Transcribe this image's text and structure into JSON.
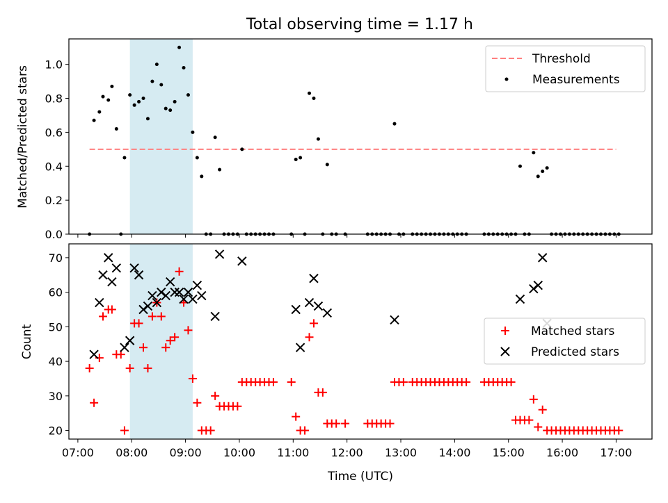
{
  "title": "Total observing time = 1.17 h",
  "colors": {
    "threshold": "#ff7f7f",
    "matched": "#ff0000",
    "predicted": "#000000",
    "band": "#add8e6"
  },
  "chart_data": [
    {
      "type": "scatter",
      "ylabel": "Matched/Predicted stars",
      "xlim": [
        "06:50",
        "17:40"
      ],
      "ylim": [
        0,
        1.15
      ],
      "yticks": [
        "0.0",
        "0.2",
        "0.4",
        "0.6",
        "0.8",
        "1.0"
      ],
      "legend_position": "top-right",
      "shaded_interval": [
        "07:58",
        "09:08"
      ],
      "threshold": {
        "name": "Threshold",
        "y": 0.5,
        "x_range": [
          "07:13",
          "17:00"
        ]
      },
      "series": [
        {
          "name": "Measurements",
          "points": [
            [
              "07:13",
              0
            ],
            [
              "07:18",
              0.67
            ],
            [
              "07:24",
              0.72
            ],
            [
              "07:28",
              0.81
            ],
            [
              "07:34",
              0.79
            ],
            [
              "07:38",
              0.87
            ],
            [
              "07:43",
              0.62
            ],
            [
              "07:48",
              0
            ],
            [
              "07:52",
              0.45
            ],
            [
              "07:58",
              0.82
            ],
            [
              "08:03",
              0.76
            ],
            [
              "08:08",
              0.78
            ],
            [
              "08:13",
              0.8
            ],
            [
              "08:18",
              0.68
            ],
            [
              "08:23",
              0.9
            ],
            [
              "08:28",
              1.0
            ],
            [
              "08:33",
              0.88
            ],
            [
              "08:38",
              0.74
            ],
            [
              "08:43",
              0.73
            ],
            [
              "08:48",
              0.78
            ],
            [
              "08:53",
              1.1
            ],
            [
              "08:58",
              0.98
            ],
            [
              "09:03",
              0.82
            ],
            [
              "09:08",
              0.6
            ],
            [
              "09:13",
              0.45
            ],
            [
              "09:18",
              0.34
            ],
            [
              "09:23",
              0
            ],
            [
              "09:28",
              0
            ],
            [
              "09:33",
              0.57
            ],
            [
              "09:38",
              0.38
            ],
            [
              "09:43",
              0
            ],
            [
              "09:48",
              0
            ],
            [
              "09:53",
              0
            ],
            [
              "09:58",
              0
            ],
            [
              "10:03",
              0.5
            ],
            [
              "10:08",
              0
            ],
            [
              "10:13",
              0
            ],
            [
              "10:18",
              0
            ],
            [
              "10:23",
              0
            ],
            [
              "10:28",
              0
            ],
            [
              "10:33",
              0
            ],
            [
              "10:38",
              0
            ],
            [
              "10:58",
              0
            ],
            [
              "11:03",
              0.44
            ],
            [
              "11:08",
              0.45
            ],
            [
              "11:13",
              0
            ],
            [
              "11:18",
              0.83
            ],
            [
              "11:23",
              0.8
            ],
            [
              "11:28",
              0.56
            ],
            [
              "11:33",
              0
            ],
            [
              "11:38",
              0.41
            ],
            [
              "11:43",
              0
            ],
            [
              "11:48",
              0
            ],
            [
              "11:58",
              0
            ],
            [
              "12:23",
              0
            ],
            [
              "12:28",
              0
            ],
            [
              "12:33",
              0
            ],
            [
              "12:38",
              0
            ],
            [
              "12:43",
              0
            ],
            [
              "12:48",
              0
            ],
            [
              "12:53",
              0.65
            ],
            [
              "12:58",
              0
            ],
            [
              "13:03",
              0
            ],
            [
              "13:13",
              0
            ],
            [
              "13:18",
              0
            ],
            [
              "13:23",
              0
            ],
            [
              "13:28",
              0
            ],
            [
              "13:33",
              0
            ],
            [
              "13:38",
              0
            ],
            [
              "13:43",
              0
            ],
            [
              "13:48",
              0
            ],
            [
              "13:53",
              0
            ],
            [
              "13:58",
              0
            ],
            [
              "14:03",
              0
            ],
            [
              "14:08",
              0
            ],
            [
              "14:13",
              0
            ],
            [
              "14:33",
              0
            ],
            [
              "14:38",
              0
            ],
            [
              "14:43",
              0
            ],
            [
              "14:48",
              0
            ],
            [
              "14:53",
              0
            ],
            [
              "14:58",
              0
            ],
            [
              "15:03",
              0
            ],
            [
              "15:08",
              0
            ],
            [
              "15:13",
              0.4
            ],
            [
              "15:18",
              0
            ],
            [
              "15:23",
              0
            ],
            [
              "15:28",
              0.48
            ],
            [
              "15:33",
              0.34
            ],
            [
              "15:38",
              0.37
            ],
            [
              "15:43",
              0.39
            ],
            [
              "15:48",
              0
            ],
            [
              "15:53",
              0
            ],
            [
              "15:58",
              0
            ],
            [
              "16:03",
              0
            ],
            [
              "16:08",
              0
            ],
            [
              "16:13",
              0
            ],
            [
              "16:18",
              0
            ],
            [
              "16:23",
              0
            ],
            [
              "16:28",
              0
            ],
            [
              "16:33",
              0
            ],
            [
              "16:38",
              0
            ],
            [
              "16:43",
              0
            ],
            [
              "16:48",
              0
            ],
            [
              "16:53",
              0
            ],
            [
              "16:58",
              0
            ],
            [
              "17:03",
              0
            ]
          ]
        }
      ]
    },
    {
      "type": "scatter",
      "xlabel": "Time (UTC)",
      "ylabel": "Count",
      "xlim": [
        "06:50",
        "17:40"
      ],
      "ylim": [
        17.5,
        74
      ],
      "xticks": [
        "07:00",
        "08:00",
        "09:00",
        "10:00",
        "11:00",
        "12:00",
        "13:00",
        "14:00",
        "15:00",
        "16:00",
        "17:00"
      ],
      "yticks": [
        "20",
        "30",
        "40",
        "50",
        "60",
        "70"
      ],
      "legend_position": "center-right",
      "shaded_interval": [
        "07:58",
        "09:08"
      ],
      "series": [
        {
          "name": "Matched stars",
          "points": [
            [
              "07:13",
              38
            ],
            [
              "07:18",
              28
            ],
            [
              "07:24",
              41
            ],
            [
              "07:28",
              53
            ],
            [
              "07:34",
              55
            ],
            [
              "07:38",
              55
            ],
            [
              "07:43",
              42
            ],
            [
              "07:48",
              42
            ],
            [
              "07:52",
              20
            ],
            [
              "07:58",
              38
            ],
            [
              "08:03",
              51
            ],
            [
              "08:08",
              51
            ],
            [
              "08:13",
              44
            ],
            [
              "08:18",
              38
            ],
            [
              "08:23",
              53
            ],
            [
              "08:28",
              57
            ],
            [
              "08:33",
              53
            ],
            [
              "08:38",
              44
            ],
            [
              "08:43",
              46
            ],
            [
              "08:48",
              47
            ],
            [
              "08:53",
              66
            ],
            [
              "08:58",
              57
            ],
            [
              "09:03",
              49
            ],
            [
              "09:08",
              35
            ],
            [
              "09:13",
              28
            ],
            [
              "09:18",
              20
            ],
            [
              "09:23",
              20
            ],
            [
              "09:28",
              20
            ],
            [
              "09:33",
              30
            ],
            [
              "09:38",
              27
            ],
            [
              "09:43",
              27
            ],
            [
              "09:48",
              27
            ],
            [
              "09:53",
              27
            ],
            [
              "09:58",
              27
            ],
            [
              "10:03",
              34
            ],
            [
              "10:08",
              34
            ],
            [
              "10:13",
              34
            ],
            [
              "10:18",
              34
            ],
            [
              "10:23",
              34
            ],
            [
              "10:28",
              34
            ],
            [
              "10:33",
              34
            ],
            [
              "10:38",
              34
            ],
            [
              "10:58",
              34
            ],
            [
              "11:03",
              24
            ],
            [
              "11:08",
              20
            ],
            [
              "11:13",
              20
            ],
            [
              "11:18",
              47
            ],
            [
              "11:23",
              51
            ],
            [
              "11:28",
              31
            ],
            [
              "11:33",
              31
            ],
            [
              "11:38",
              22
            ],
            [
              "11:43",
              22
            ],
            [
              "11:48",
              22
            ],
            [
              "11:58",
              22
            ],
            [
              "12:23",
              22
            ],
            [
              "12:28",
              22
            ],
            [
              "12:33",
              22
            ],
            [
              "12:38",
              22
            ],
            [
              "12:43",
              22
            ],
            [
              "12:48",
              22
            ],
            [
              "12:53",
              34
            ],
            [
              "12:58",
              34
            ],
            [
              "13:03",
              34
            ],
            [
              "13:13",
              34
            ],
            [
              "13:18",
              34
            ],
            [
              "13:23",
              34
            ],
            [
              "13:28",
              34
            ],
            [
              "13:33",
              34
            ],
            [
              "13:38",
              34
            ],
            [
              "13:43",
              34
            ],
            [
              "13:48",
              34
            ],
            [
              "13:53",
              34
            ],
            [
              "13:58",
              34
            ],
            [
              "14:03",
              34
            ],
            [
              "14:08",
              34
            ],
            [
              "14:13",
              34
            ],
            [
              "14:33",
              34
            ],
            [
              "14:38",
              34
            ],
            [
              "14:43",
              34
            ],
            [
              "14:48",
              34
            ],
            [
              "14:53",
              34
            ],
            [
              "14:58",
              34
            ],
            [
              "15:03",
              34
            ],
            [
              "15:08",
              23
            ],
            [
              "15:13",
              23
            ],
            [
              "15:18",
              23
            ],
            [
              "15:23",
              23
            ],
            [
              "15:28",
              29
            ],
            [
              "15:33",
              21
            ],
            [
              "15:38",
              26
            ],
            [
              "15:43",
              20
            ],
            [
              "15:48",
              20
            ],
            [
              "15:53",
              20
            ],
            [
              "15:58",
              20
            ],
            [
              "16:03",
              20
            ],
            [
              "16:08",
              20
            ],
            [
              "16:13",
              20
            ],
            [
              "16:18",
              20
            ],
            [
              "16:23",
              20
            ],
            [
              "16:28",
              20
            ],
            [
              "16:33",
              20
            ],
            [
              "16:38",
              20
            ],
            [
              "16:43",
              20
            ],
            [
              "16:48",
              20
            ],
            [
              "16:53",
              20
            ],
            [
              "16:58",
              20
            ],
            [
              "17:03",
              20
            ]
          ]
        },
        {
          "name": "Predicted stars",
          "points": [
            [
              "07:18",
              42
            ],
            [
              "07:24",
              57
            ],
            [
              "07:28",
              65
            ],
            [
              "07:34",
              70
            ],
            [
              "07:38",
              63
            ],
            [
              "07:43",
              67
            ],
            [
              "07:52",
              44
            ],
            [
              "07:58",
              46
            ],
            [
              "08:03",
              67
            ],
            [
              "08:08",
              65
            ],
            [
              "08:13",
              55
            ],
            [
              "08:18",
              56
            ],
            [
              "08:23",
              59
            ],
            [
              "08:28",
              57
            ],
            [
              "08:33",
              60
            ],
            [
              "08:38",
              59
            ],
            [
              "08:43",
              63
            ],
            [
              "08:48",
              60
            ],
            [
              "08:53",
              60
            ],
            [
              "08:58",
              58
            ],
            [
              "09:03",
              60
            ],
            [
              "09:08",
              58
            ],
            [
              "09:13",
              62
            ],
            [
              "09:18",
              59
            ],
            [
              "09:33",
              53
            ],
            [
              "09:38",
              71
            ],
            [
              "10:03",
              69
            ],
            [
              "11:03",
              55
            ],
            [
              "11:08",
              44
            ],
            [
              "11:18",
              57
            ],
            [
              "11:23",
              64
            ],
            [
              "11:28",
              56
            ],
            [
              "11:38",
              54
            ],
            [
              "12:53",
              52
            ],
            [
              "15:13",
              58
            ],
            [
              "15:28",
              61
            ],
            [
              "15:33",
              62
            ],
            [
              "15:38",
              70
            ],
            [
              "15:43",
              51
            ]
          ]
        }
      ]
    }
  ]
}
